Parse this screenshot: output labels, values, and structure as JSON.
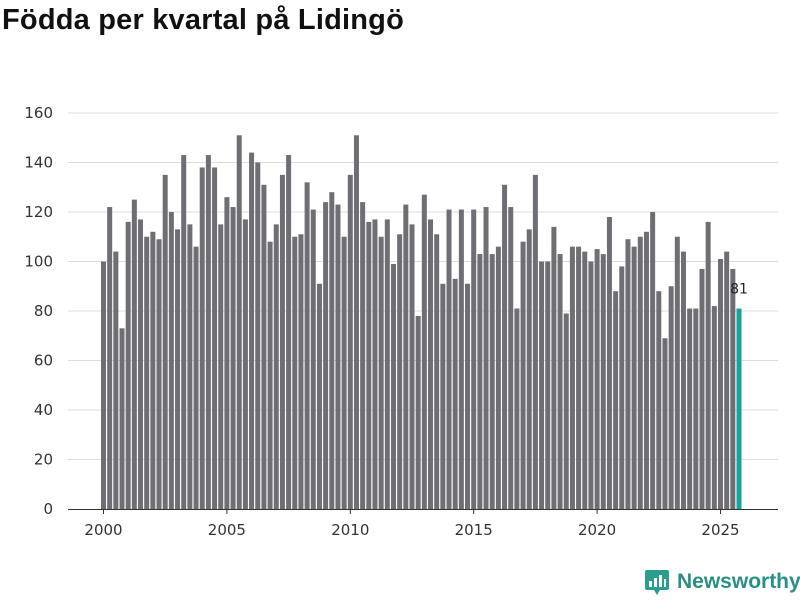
{
  "page_title": "Födda per kvartal på Lidingö",
  "brand": {
    "name": "Newsworthy",
    "icon": "newsworthy-logo-icon",
    "color": "#2a9d8f"
  },
  "colors": {
    "bar": "#6f6e74",
    "highlight": "#17a398",
    "grid": "#dddddd",
    "axis": "#333333"
  },
  "chart_data": {
    "type": "bar",
    "title": "Födda per kvartal på Lidingö",
    "xlabel": "",
    "ylabel": "",
    "ylim": [
      0,
      160
    ],
    "yticks": [
      "0",
      "20",
      "40",
      "60",
      "80",
      "100",
      "120",
      "140",
      "160"
    ],
    "xticks": [
      {
        "label": "2000",
        "at": 2000.0
      },
      {
        "label": "2005",
        "at": 2005.0
      },
      {
        "label": "2010",
        "at": 2010.0
      },
      {
        "label": "2015",
        "at": 2015.0
      },
      {
        "label": "2020",
        "at": 2020.0
      },
      {
        "label": "2025",
        "at": 2025.0
      }
    ],
    "start_year": 2000,
    "grid": true,
    "highlight_last": true,
    "last_label": "81",
    "values": [
      100,
      122,
      104,
      73,
      116,
      125,
      117,
      110,
      112,
      109,
      135,
      120,
      113,
      143,
      115,
      106,
      138,
      143,
      138,
      115,
      126,
      122,
      151,
      117,
      144,
      140,
      131,
      108,
      115,
      135,
      143,
      110,
      111,
      132,
      121,
      91,
      124,
      128,
      123,
      110,
      135,
      151,
      124,
      116,
      117,
      110,
      117,
      99,
      111,
      123,
      115,
      78,
      127,
      117,
      111,
      91,
      121,
      93,
      121,
      91,
      121,
      103,
      122,
      103,
      106,
      131,
      122,
      81,
      108,
      113,
      135,
      100,
      100,
      114,
      103,
      79,
      106,
      106,
      104,
      100,
      105,
      103,
      118,
      88,
      98,
      109,
      106,
      110,
      112,
      120,
      88,
      69,
      90,
      110,
      104,
      81,
      81,
      97,
      116,
      82,
      101,
      104,
      97,
      81
    ]
  }
}
